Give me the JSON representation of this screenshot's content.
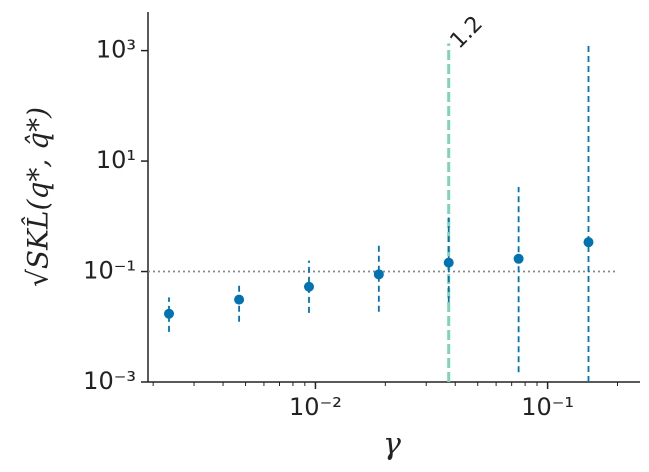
{
  "chart_data": {
    "type": "errorbar",
    "xlabel": "γ",
    "ylabel": "√SKL̂(q*, q̂*)",
    "xscale": "log",
    "yscale": "log",
    "xlim": [
      0.0019,
      0.25
    ],
    "ylim": [
      0.001,
      5000
    ],
    "xticks": [
      {
        "value": 0.01,
        "label": "10⁻²"
      },
      {
        "value": 0.1,
        "label": "10⁻¹"
      }
    ],
    "xminorticks": [
      0.002,
      0.003,
      0.004,
      0.005,
      0.006,
      0.007,
      0.008,
      0.009,
      0.02,
      0.03,
      0.04,
      0.05,
      0.06,
      0.07,
      0.08,
      0.09,
      0.2
    ],
    "yticks": [
      {
        "value": 0.001,
        "label": "10⁻³"
      },
      {
        "value": 0.1,
        "label": "10⁻¹"
      },
      {
        "value": 10,
        "label": "10¹"
      },
      {
        "value": 1000,
        "label": "10³"
      }
    ],
    "series": [
      {
        "color": "#0173b2",
        "x": [
          0.00234,
          0.00469,
          0.00938,
          0.01875,
          0.0375,
          0.075,
          0.15
        ],
        "values": [
          0.0172,
          0.031,
          0.053,
          0.089,
          0.145,
          0.17,
          0.34
        ],
        "lower": [
          0.0081,
          0.0123,
          0.0178,
          0.0187,
          0.028,
          0.0015,
          0.001
        ],
        "upper": [
          0.034,
          0.063,
          0.158,
          0.34,
          0.95,
          3.4,
          1350
        ]
      }
    ],
    "hline": {
      "y": 0.1,
      "color": "#888888"
    },
    "vline": {
      "x": 0.0375,
      "top": 1350,
      "label": "1.2",
      "color": "#7fd3bb"
    }
  }
}
